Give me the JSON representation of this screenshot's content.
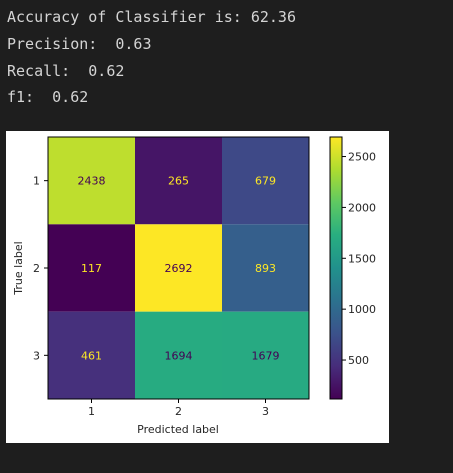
{
  "output": {
    "accuracy_line": "Accuracy of Classifier is: 62.36",
    "precision_line": "Precision:  0.63",
    "recall_line": "Recall:  0.62",
    "f1_line": "f1:  0.62"
  },
  "chart_data": {
    "type": "heatmap",
    "title": "",
    "xlabel": "Predicted label",
    "ylabel": "True label",
    "x_categories": [
      "1",
      "2",
      "3"
    ],
    "y_categories": [
      "1",
      "2",
      "3"
    ],
    "values": [
      [
        2438,
        265,
        679
      ],
      [
        117,
        2692,
        893
      ],
      [
        461,
        1694,
        1679
      ]
    ],
    "colormap": "viridis",
    "colorbar": {
      "min": 117,
      "max": 2692,
      "ticks": [
        500,
        1000,
        1500,
        2000,
        2500
      ]
    },
    "grid": false
  }
}
